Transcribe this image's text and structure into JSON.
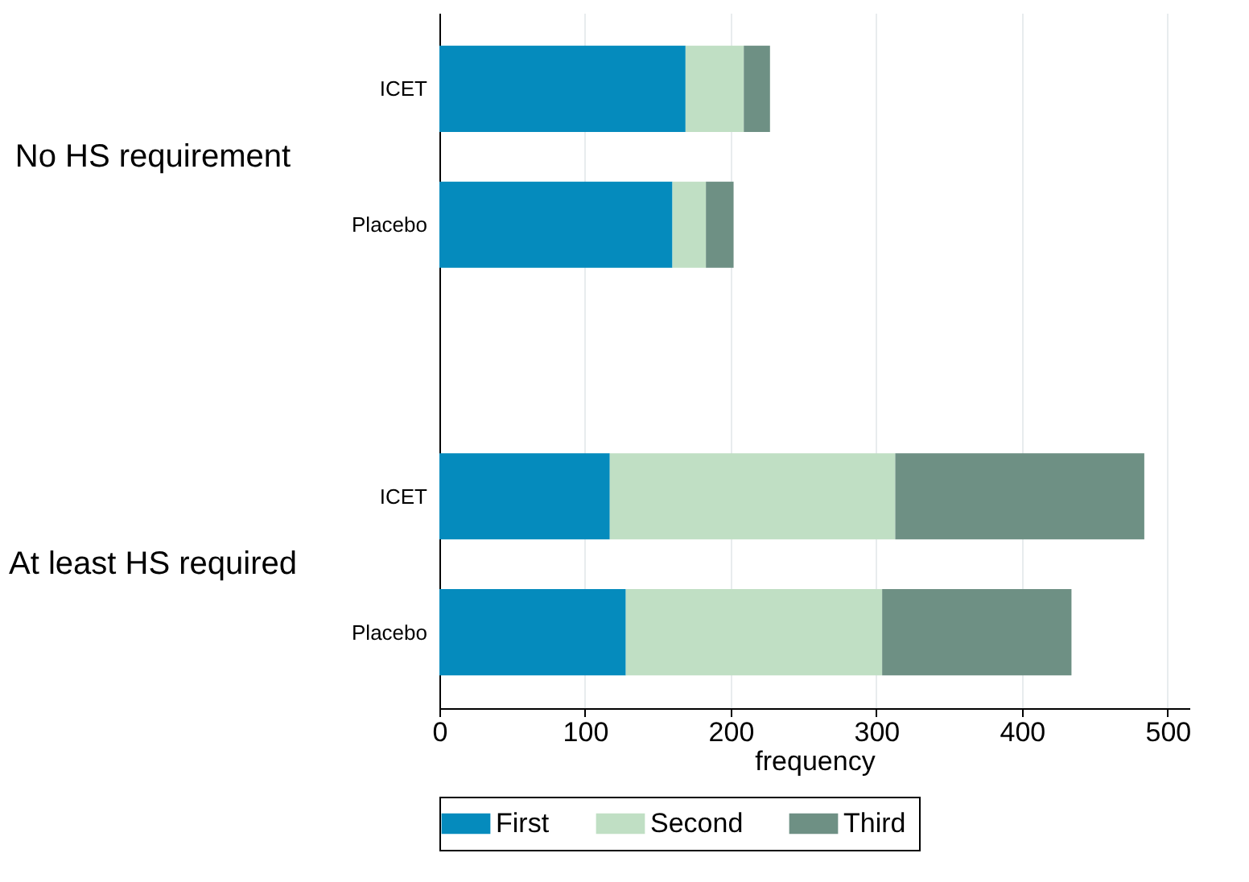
{
  "chart_data": {
    "type": "bar",
    "orientation": "horizontal",
    "stacked": true,
    "xlabel": "frequency",
    "categories": [
      "ICET",
      "Placebo",
      null,
      "ICET",
      "Placebo"
    ],
    "series": [
      {
        "name": "First",
        "color": "#058bbd",
        "values": [
          169,
          160,
          null,
          117,
          128
        ]
      },
      {
        "name": "Second",
        "color": "#c0dfc4",
        "values": [
          40,
          23,
          null,
          196,
          176
        ]
      },
      {
        "name": "Third",
        "color": "#6e9084",
        "values": [
          18,
          19,
          null,
          171,
          130
        ]
      }
    ],
    "annotations": [
      "No HS requirement",
      "At least HS required"
    ],
    "xlim": [
      0,
      515
    ],
    "xticks": [
      0,
      100,
      200,
      300,
      400,
      500
    ],
    "grid": "x",
    "legend": "bottom"
  }
}
